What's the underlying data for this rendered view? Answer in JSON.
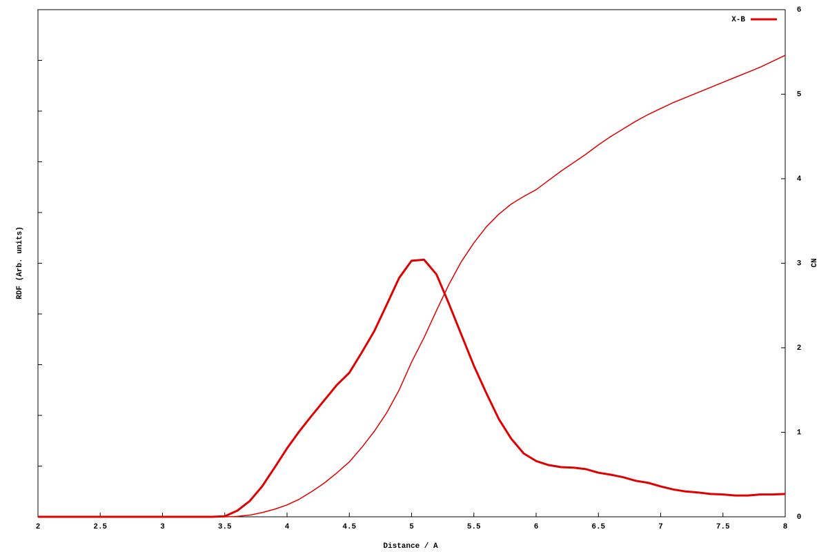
{
  "chart_data": {
    "type": "line",
    "xlabel": "Distance / A",
    "ylabel": "RDF (Arb. units)",
    "y2label": "CN",
    "x": [
      2,
      2.1,
      2.2,
      2.3,
      2.4,
      2.5,
      2.6,
      2.7,
      2.8,
      2.9,
      3,
      3.1,
      3.2,
      3.3,
      3.4,
      3.5,
      3.6,
      3.7,
      3.8,
      3.9,
      4,
      4.1,
      4.2,
      4.3,
      4.4,
      4.5,
      4.6,
      4.7,
      4.8,
      4.9,
      5,
      5.1,
      5.2,
      5.3,
      5.4,
      5.5,
      5.6,
      5.7,
      5.8,
      5.9,
      6,
      6.1,
      6.2,
      6.3,
      6.4,
      6.5,
      6.6,
      6.7,
      6.8,
      6.9,
      7,
      7.1,
      7.2,
      7.3,
      7.4,
      7.5,
      7.6,
      7.7,
      7.8,
      7.9,
      8
    ],
    "series": [
      {
        "name": "X-B",
        "color": "#e00000",
        "linewidth": 3,
        "axis": "y",
        "values": [
          0,
          0,
          0,
          0,
          0,
          0,
          0,
          0,
          0,
          0,
          0,
          0,
          0,
          0,
          0,
          0.01,
          0.12,
          0.31,
          0.6,
          0.97,
          1.35,
          1.69,
          2.0,
          2.3,
          2.6,
          2.84,
          3.24,
          3.66,
          4.18,
          4.71,
          5.05,
          5.07,
          4.78,
          4.2,
          3.59,
          2.98,
          2.44,
          1.93,
          1.54,
          1.25,
          1.1,
          1.02,
          0.98,
          0.97,
          0.94,
          0.87,
          0.83,
          0.78,
          0.71,
          0.67,
          0.6,
          0.54,
          0.5,
          0.48,
          0.45,
          0.44,
          0.42,
          0.42,
          0.44,
          0.44,
          0.45
        ]
      },
      {
        "color": "#e00000",
        "linewidth": 1.5,
        "axis": "y2",
        "values": [
          0,
          0,
          0,
          0,
          0,
          0,
          0,
          0,
          0,
          0,
          0,
          0,
          0,
          0,
          0,
          0,
          0.005,
          0.02,
          0.05,
          0.09,
          0.14,
          0.21,
          0.3,
          0.4,
          0.52,
          0.65,
          0.82,
          1.01,
          1.23,
          1.5,
          1.83,
          2.12,
          2.44,
          2.75,
          3.02,
          3.24,
          3.43,
          3.58,
          3.7,
          3.79,
          3.87,
          3.98,
          4.09,
          4.19,
          4.29,
          4.4,
          4.5,
          4.59,
          4.68,
          4.76,
          4.83,
          4.9,
          4.96,
          5.02,
          5.08,
          5.14,
          5.2,
          5.26,
          5.32,
          5.39,
          5.46
        ]
      }
    ],
    "xlim": [
      2,
      8
    ],
    "xticks": [
      2,
      2.5,
      3,
      3.5,
      4,
      4.5,
      5,
      5.5,
      6,
      6.5,
      7,
      7.5,
      8
    ],
    "ylim": [
      0,
      10
    ],
    "yticks": [
      0,
      1,
      2,
      3,
      4,
      5,
      6,
      7,
      8,
      9,
      10
    ],
    "y2lim": [
      0,
      6
    ],
    "y2ticks": [
      0,
      1,
      2,
      3,
      4,
      5,
      6
    ],
    "legend": "top right",
    "grid": false
  }
}
